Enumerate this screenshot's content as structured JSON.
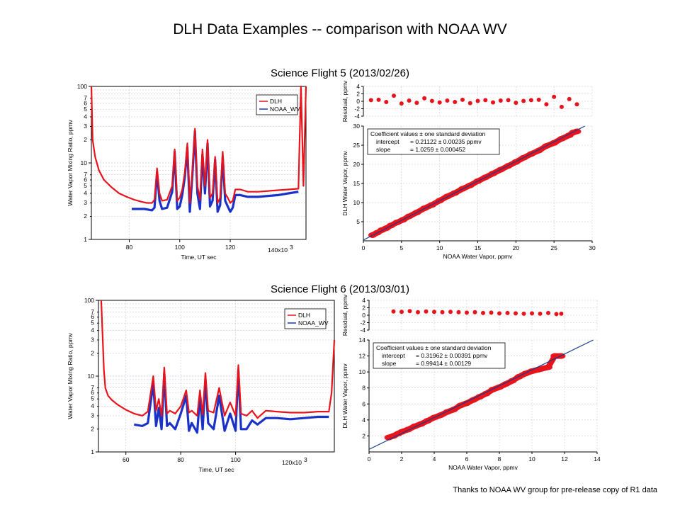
{
  "title": "DLH Data Examples -- comparison with NOAA WV",
  "footer": "Thanks  to NOAA WV group for pre-release copy of R1 data",
  "colors": {
    "dlh": "#e8141b",
    "noaa": "#1a32c8",
    "fit": "#1a3a8c"
  },
  "flights": [
    {
      "title": "Science Flight 5 (2013/02/26)",
      "timeseries": {
        "type": "line",
        "ylabel": "Water Vapor Mixing Ratio, ppmv",
        "xlabel": "Time, UT sec",
        "x_unit_label": "140x10",
        "x_unit_exp": "3",
        "yscale": "log",
        "ylim": [
          1,
          100
        ],
        "xlim": [
          65000,
          150000
        ],
        "xticks": [
          80000,
          100000,
          120000
        ],
        "xtick_labels": [
          "80",
          "100",
          "120"
        ],
        "yticks_major": [
          1,
          10,
          100
        ],
        "ytick_major_labels": [
          "1",
          "10",
          "100"
        ],
        "ytick_minor_labels": [
          "2",
          "3",
          "4",
          "5",
          "6",
          "7"
        ],
        "legend": [
          "DLH",
          "NOAA_WV"
        ],
        "series": [
          {
            "name": "DLH",
            "x": [
              65000,
              65500,
              66500,
              68000,
              70000,
              73000,
              76000,
              79000,
              82000,
              85000,
              87000,
              89000,
              90000,
              91000,
              92000,
              93000,
              95000,
              97000,
              98000,
              99000,
              100000,
              101000,
              102000,
              103000,
              104000,
              105000,
              106000,
              107000,
              108000,
              109000,
              110000,
              111000,
              112000,
              113000,
              114000,
              115000,
              116000,
              117000,
              118000,
              119000,
              120000,
              121000,
              122000,
              124000,
              127000,
              131000,
              135000,
              139000,
              143000,
              147000,
              148000,
              149000,
              150000
            ],
            "values": [
              100,
              20,
              12,
              8,
              6,
              4.8,
              4,
              3.6,
              3.3,
              3.1,
              3.0,
              3.0,
              3.3,
              8.5,
              4.0,
              3.2,
              3.3,
              5.0,
              15,
              3.2,
              3.5,
              4.5,
              7.5,
              18,
              3.0,
              8,
              28,
              5,
              3.3,
              15,
              5,
              20,
              3.5,
              4,
              12,
              3,
              3.5,
              14,
              4,
              3.5,
              3,
              3.2,
              4.5,
              4.5,
              4.2,
              4.2,
              4.3,
              4.4,
              4.5,
              4.6,
              100,
              5,
              100
            ]
          },
          {
            "name": "NOAA_WV",
            "x": [
              81000,
              83000,
              86000,
              89000,
              90000,
              91000,
              92000,
              93000,
              95000,
              97000,
              98000,
              99000,
              100000,
              101000,
              102000,
              103000,
              104000,
              105000,
              106000,
              107000,
              108000,
              109000,
              110000,
              111000,
              112000,
              113000,
              114000,
              115000,
              116000,
              117000,
              118000,
              119000,
              120000,
              121000,
              122000,
              124000,
              127000,
              131000,
              135000,
              139000,
              143000,
              147000
            ],
            "values": [
              2.5,
              2.5,
              2.5,
              2.4,
              2.6,
              7.5,
              3.2,
              2.5,
              2.6,
              4.2,
              14,
              2.5,
              2.7,
              3.8,
              6.5,
              16,
              2.3,
              7,
              26,
              4,
              2.5,
              13,
              4,
              18,
              2.7,
              3.2,
              11,
              2.3,
              2.8,
              12,
              3.2,
              2.7,
              2.3,
              2.6,
              3.8,
              3.8,
              3.6,
              3.6,
              3.7,
              3.8,
              4.0,
              4.2
            ]
          }
        ]
      },
      "scatter": {
        "type": "scatter",
        "xlabel": "NOAA Water Vapor, ppmv",
        "ylabel": "DLH Water Vapor, ppmv",
        "xlim": [
          0,
          30
        ],
        "ylim": [
          0,
          30
        ],
        "xticks": [
          0,
          5,
          10,
          15,
          20,
          25,
          30
        ],
        "yticks": [
          5,
          10,
          15,
          20,
          25,
          30
        ],
        "coefficients": {
          "header": "Coefficient values ± one standard deviation",
          "intercept_label": "intercept",
          "intercept": "= 0.21122 ± 0.00235 ppmv",
          "slope_label": "slope",
          "slope": "= 1.0259 ± 0.000452"
        },
        "fit": {
          "intercept": 0.21122,
          "slope": 1.0259
        },
        "points_x": [
          1.2,
          1.8,
          2.4,
          3.0,
          3.6,
          4.4,
          5.2,
          6.0,
          7.0,
          8.0,
          9.0,
          10.0,
          11.0,
          12.0,
          13.0,
          14.0,
          15.0,
          16.0,
          17.0,
          18.0,
          19.0,
          20.0,
          21.0,
          22.0,
          23.0,
          24.0,
          25.0,
          26.0,
          27.0,
          27.5,
          28.0
        ],
        "points_y": [
          1.5,
          2.1,
          2.8,
          3.3,
          4.0,
          4.8,
          5.5,
          6.4,
          7.4,
          8.5,
          9.4,
          10.5,
          11.6,
          12.5,
          13.6,
          14.5,
          15.6,
          16.6,
          17.6,
          18.6,
          19.6,
          20.6,
          21.7,
          22.7,
          23.6,
          24.8,
          25.6,
          26.7,
          27.6,
          28.3,
          28.6
        ],
        "residual": {
          "ylabel": "Residual, ppmv",
          "ylim": [
            -4,
            4
          ],
          "yticks": [
            -4,
            -2,
            0,
            2,
            4
          ],
          "x": [
            1,
            2,
            3,
            4,
            5,
            6,
            7,
            8,
            9,
            10,
            11,
            12,
            13,
            14,
            15,
            16,
            17,
            18,
            19,
            20,
            21,
            22,
            23,
            24,
            25,
            26,
            27,
            28
          ],
          "values": [
            0.3,
            0.4,
            -0.2,
            1.5,
            -0.6,
            0.2,
            -0.4,
            0.8,
            0.1,
            -0.3,
            0.2,
            -0.2,
            0.4,
            -0.5,
            0.1,
            0.3,
            -0.3,
            0.2,
            0.3,
            -0.4,
            0.1,
            0.3,
            0.4,
            -0.8,
            1.2,
            -1.5,
            0.6,
            -0.8
          ]
        }
      }
    },
    {
      "title": "Science Flight 6 (2013/03/01)",
      "timeseries": {
        "type": "line",
        "ylabel": "Water Vapor Mixing Ratio, ppmv",
        "xlabel": "Time, UT sec",
        "x_unit_label": "120x10",
        "x_unit_exp": "3",
        "yscale": "log",
        "ylim": [
          1,
          100
        ],
        "xlim": [
          50000,
          136000
        ],
        "xticks": [
          60000,
          80000,
          100000
        ],
        "xtick_labels": [
          "60",
          "80",
          "100"
        ],
        "yticks_major": [
          1,
          10,
          100
        ],
        "ytick_major_labels": [
          "1",
          "10",
          "100"
        ],
        "ytick_minor_labels": [
          "2",
          "3",
          "4",
          "5",
          "6",
          "7"
        ],
        "legend": [
          "DLH",
          "NOAA_WV"
        ],
        "series": [
          {
            "name": "DLH",
            "x": [
              51000,
              51500,
              52000,
              52500,
              53500,
              55000,
              57000,
              60000,
              63000,
              66000,
              68000,
              70000,
              71000,
              72000,
              73000,
              74000,
              75000,
              76000,
              78000,
              80000,
              82000,
              83000,
              84000,
              86000,
              87000,
              88000,
              89000,
              90000,
              92000,
              94000,
              96000,
              98000,
              100000,
              101000,
              102000,
              104000,
              106000,
              108000,
              111000,
              115000,
              120000,
              125000,
              130000,
              134000,
              135000,
              136000
            ],
            "values": [
              100,
              35,
              12,
              7,
              5.5,
              4.8,
              4.2,
              3.6,
              3.2,
              3.0,
              3.4,
              10,
              3.5,
              5,
              3.0,
              13,
              3.2,
              3.5,
              3.2,
              4,
              6.5,
              3.3,
              3.5,
              3.0,
              6.5,
              3.1,
              11,
              3.5,
              3.3,
              7,
              3.0,
              4.5,
              3.0,
              14,
              3.2,
              3.0,
              3.5,
              2.8,
              3.5,
              3.4,
              3.3,
              3.3,
              3.4,
              3.4,
              6,
              30
            ]
          },
          {
            "name": "NOAA_WV",
            "x": [
              63000,
              66000,
              68000,
              70000,
              71000,
              72000,
              73000,
              74000,
              75000,
              76000,
              78000,
              80000,
              82000,
              83000,
              84000,
              86000,
              87000,
              88000,
              89000,
              90000,
              92000,
              94000,
              96000,
              98000,
              100000,
              101000,
              102000,
              104000,
              106000,
              108000,
              111000,
              115000,
              120000,
              125000,
              130000,
              134000
            ],
            "values": [
              2.3,
              2.2,
              2.4,
              8,
              2.2,
              3.8,
              2.0,
              11,
              2.2,
              2.4,
              2.0,
              3.2,
              5.5,
              1.9,
              2.4,
              1.8,
              5.5,
              2.0,
              9,
              2.4,
              2.0,
              5.5,
              1.9,
              3.2,
              1.9,
              12,
              2.0,
              2.0,
              2.6,
              2.3,
              2.8,
              2.8,
              2.7,
              2.8,
              2.9,
              2.9
            ]
          }
        ]
      },
      "scatter": {
        "type": "scatter",
        "xlabel": "NOAA Water Vapor, ppmv",
        "ylabel": "DLH Water Vapor, ppmv",
        "xlim": [
          0,
          14
        ],
        "ylim": [
          0,
          14
        ],
        "xticks": [
          0,
          2,
          4,
          6,
          8,
          10,
          12,
          14
        ],
        "yticks": [
          2,
          4,
          6,
          8,
          10,
          12,
          14
        ],
        "coefficients": {
          "header": "Coefficient values ± one standard deviation",
          "intercept_label": "intercept",
          "intercept": "= 0.31962 ± 0.00391 ppmv",
          "slope_label": "slope",
          "slope": "= 0.99414 ± 0.00129"
        },
        "fit": {
          "intercept": 0.31962,
          "slope": 0.99414
        },
        "points_x": [
          1.2,
          1.5,
          1.8,
          2.0,
          2.4,
          2.8,
          3.2,
          3.6,
          4.0,
          4.4,
          4.8,
          5.2,
          5.6,
          6.0,
          6.4,
          6.8,
          7.2,
          7.6,
          8.0,
          8.4,
          8.8,
          9.2,
          9.6,
          10.0,
          10.4,
          11.0,
          11.4,
          11.8
        ],
        "points_y": [
          1.8,
          2.0,
          2.3,
          2.5,
          2.8,
          3.2,
          3.5,
          3.9,
          4.3,
          4.6,
          5.0,
          5.3,
          5.8,
          6.1,
          6.5,
          6.9,
          7.3,
          7.8,
          8.1,
          8.5,
          8.9,
          9.4,
          9.8,
          10.1,
          10.3,
          10.6,
          12.0,
          12.0
        ],
        "residual": {
          "ylabel": "Residual, ppmv",
          "ylim": [
            -4,
            4
          ],
          "yticks": [
            -4,
            -2,
            0,
            2,
            4
          ],
          "x": [
            1.5,
            2,
            2.5,
            3,
            3.5,
            4,
            4.5,
            5,
            5.5,
            6,
            6.5,
            7,
            7.5,
            8,
            8.5,
            9,
            9.5,
            10,
            10.5,
            11,
            11.5,
            11.8
          ],
          "values": [
            1.0,
            0.9,
            1.1,
            0.8,
            1.0,
            0.9,
            0.8,
            0.9,
            0.8,
            0.7,
            0.8,
            0.6,
            0.7,
            0.5,
            0.6,
            0.5,
            0.4,
            0.5,
            0.4,
            0.6,
            0.3,
            0.4
          ]
        }
      }
    }
  ]
}
